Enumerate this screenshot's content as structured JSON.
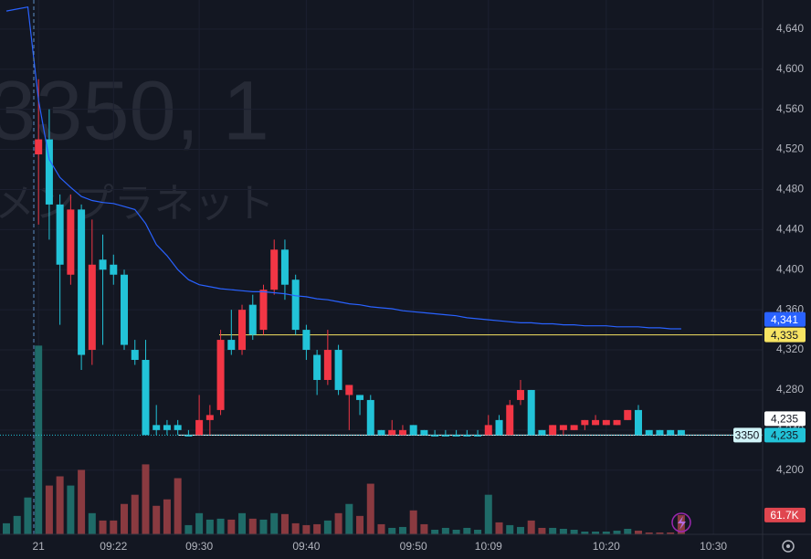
{
  "watermark": {
    "symbol_line": "3350, 1",
    "name": "メンプラネット"
  },
  "chart_data": {
    "type": "candlestick",
    "categories": [
      null,
      null,
      null,
      "21",
      null,
      null,
      null,
      null,
      null,
      null,
      "09:22",
      null,
      null,
      null,
      null,
      null,
      null,
      null,
      "09:30",
      null,
      null,
      null,
      null,
      null,
      null,
      null,
      null,
      null,
      "09:40",
      null,
      null,
      null,
      null,
      null,
      null,
      null,
      null,
      null,
      "09:50",
      null,
      null,
      null,
      null,
      null,
      null,
      "10:09",
      null,
      null,
      null,
      null,
      null,
      null,
      null,
      null,
      null,
      null,
      "10:20",
      null,
      null,
      null,
      null,
      null,
      null,
      null,
      null,
      null,
      "10:30",
      null,
      null,
      null,
      null
    ],
    "open": [
      null,
      null,
      null,
      4515,
      4530,
      4465,
      4395,
      4460,
      4320,
      4410,
      4405,
      4395,
      4320,
      4310,
      4245,
      4245,
      4245,
      4235,
      4235,
      4250,
      4260,
      4330,
      4320,
      4365,
      4340,
      4380,
      4420,
      4390,
      4340,
      4315,
      4290,
      4320,
      4275,
      4275,
      4270,
      4240,
      4235,
      4235,
      4245,
      4240,
      4235,
      4235,
      4235,
      4235,
      4235,
      4235,
      4250,
      4235,
      4270,
      4280,
      4240,
      4235,
      4240,
      4240,
      4245,
      4245,
      4245,
      4245,
      4250,
      4260,
      4240,
      4240,
      4240,
      4240,
      null,
      null,
      null,
      null,
      null,
      null,
      null
    ],
    "high": [
      null,
      null,
      null,
      4590,
      4560,
      4475,
      4475,
      4465,
      4450,
      4435,
      4415,
      4400,
      4330,
      4330,
      4265,
      4250,
      4250,
      4240,
      4275,
      4265,
      4340,
      4360,
      4365,
      4375,
      4385,
      4430,
      4430,
      4395,
      4345,
      4320,
      4340,
      4325,
      4285,
      4275,
      4275,
      4240,
      4250,
      4245,
      4245,
      4240,
      4240,
      4240,
      4240,
      4240,
      4240,
      4255,
      4255,
      4270,
      4290,
      4280,
      4240,
      4245,
      4245,
      4245,
      4250,
      4255,
      4250,
      4250,
      4260,
      4265,
      4240,
      4240,
      4240,
      4240,
      null,
      null,
      null,
      null,
      null,
      null,
      null
    ],
    "low": [
      null,
      null,
      null,
      4445,
      4430,
      4345,
      4385,
      4300,
      4305,
      4325,
      4385,
      4320,
      4305,
      4235,
      4235,
      4235,
      4235,
      4235,
      4235,
      4235,
      4255,
      4315,
      4315,
      4330,
      4335,
      4375,
      4370,
      4335,
      4310,
      4275,
      4285,
      4275,
      4240,
      4255,
      4235,
      4235,
      4235,
      4235,
      4235,
      4235,
      4235,
      4235,
      4235,
      4235,
      4235,
      4235,
      4235,
      4235,
      4265,
      4235,
      4235,
      4235,
      4235,
      4240,
      4240,
      4245,
      4245,
      4245,
      4250,
      4235,
      4235,
      4235,
      4235,
      4235,
      null,
      null,
      null,
      null,
      null,
      null,
      null
    ],
    "close": [
      null,
      null,
      null,
      4530,
      4465,
      4405,
      4460,
      4315,
      4405,
      4400,
      4395,
      4325,
      4310,
      4235,
      4240,
      4240,
      4240,
      4235,
      4250,
      4255,
      4330,
      4320,
      4360,
      4335,
      4380,
      4420,
      4385,
      4340,
      4320,
      4290,
      4320,
      4280,
      4285,
      4270,
      4235,
      4235,
      4240,
      4240,
      4235,
      4235,
      4235,
      4235,
      4235,
      4235,
      4235,
      4245,
      4235,
      4265,
      4280,
      4235,
      4235,
      4245,
      4245,
      4245,
      4250,
      4250,
      4250,
      4250,
      4260,
      4235,
      4235,
      4235,
      4235,
      4235,
      null,
      null,
      null,
      null,
      null,
      null,
      null
    ],
    "up_color": "#f23645",
    "down_color": "#22c3d8",
    "ylim": [
      4136,
      4669
    ],
    "yticks": [
      {
        "value": 4200,
        "label": "4,200"
      },
      {
        "value": 4240,
        "label": "4,240"
      },
      {
        "value": 4280,
        "label": "4,280"
      },
      {
        "value": 4320,
        "label": "4,320"
      },
      {
        "value": 4360,
        "label": "4,360"
      },
      {
        "value": 4400,
        "label": "4,400"
      },
      {
        "value": 4440,
        "label": "4,440"
      },
      {
        "value": 4480,
        "label": "4,480"
      },
      {
        "value": 4520,
        "label": "4,520"
      },
      {
        "value": 4560,
        "label": "4,560"
      },
      {
        "value": 4600,
        "label": "4,600"
      },
      {
        "value": 4640,
        "label": "4,640"
      }
    ],
    "grid": true,
    "vwap": {
      "color": "#2962ff",
      "last_label": "4,341",
      "values": [
        4658,
        4660,
        4662,
        4569,
        4510,
        4492,
        4482,
        4473,
        4469,
        4467,
        4466,
        4463,
        4460,
        4446,
        4425,
        4414,
        4400,
        4390,
        4385,
        4383,
        4381,
        4380,
        4379,
        4378,
        4378,
        4377,
        4376,
        4374,
        4373,
        4371,
        4370,
        4368,
        4366,
        4365,
        4363,
        4362,
        4361,
        4359,
        4358,
        4357,
        4356,
        4355,
        4354,
        4352,
        4351,
        4350,
        4349,
        4348,
        4347,
        4347,
        4346,
        4346,
        4345,
        4345,
        4344,
        4344,
        4344,
        4343,
        4343,
        4343,
        4342,
        4342,
        4341,
        4341,
        null,
        null,
        null,
        null,
        null,
        null,
        null
      ]
    },
    "volume": {
      "up_color": "#1f6b68",
      "down_color": "#8a3a40",
      "last_label": "61.7K",
      "last_color": "#e0464f",
      "vlim": [
        0,
        700000
      ],
      "values": [
        35300,
        58800,
        117600,
        602700,
        155800,
        185200,
        155800,
        205800,
        67600,
        44100,
        44100,
        97000,
        126400,
        223400,
        91100,
        111700,
        179300,
        29400,
        67600,
        47000,
        50000,
        47000,
        67600,
        50000,
        47000,
        67600,
        64700,
        35300,
        29400,
        32300,
        44100,
        67600,
        97000,
        58800,
        161700,
        32300,
        20600,
        23500,
        76400,
        32300,
        14700,
        20600,
        14700,
        20600,
        14700,
        126400,
        38200,
        29400,
        23500,
        44100,
        20600,
        20600,
        17600,
        14700,
        8800,
        8800,
        8800,
        11800,
        17600,
        11800,
        5900,
        5900,
        5900,
        61700,
        null,
        null,
        null,
        null,
        null,
        null,
        null
      ]
    },
    "levels": [
      {
        "value": 4335,
        "label": "4,335",
        "color": "#f7e463"
      },
      {
        "value": 4235,
        "label": "4,235",
        "color": "#ffffff"
      }
    ],
    "last_price": {
      "value": 4235,
      "label": "4,235",
      "symbol": "3350",
      "color": "#22c3d8"
    }
  }
}
